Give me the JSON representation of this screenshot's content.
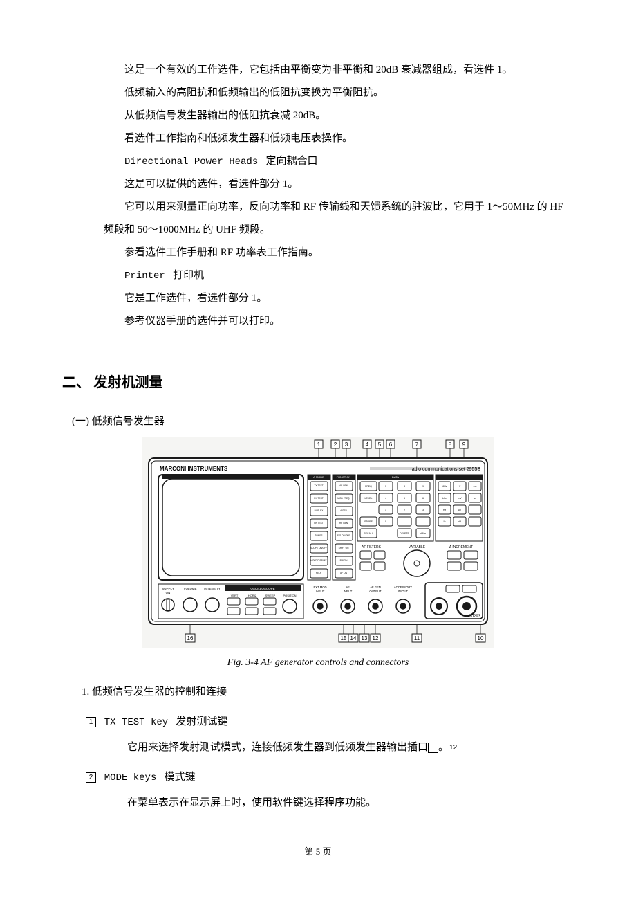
{
  "paragraphs": {
    "p1": "这是一个有效的工作选件，它包括由平衡变为非平衡和 20dB 衰减器组成，看选件 1。",
    "p2": "低频输入的高阻抗和低频输出的低阻抗变换为平衡阻抗。",
    "p3": "从低频信号发生器输出的低阻抗衰减 20dB。",
    "p4": "看选件工作指南和低频发生器和低频电压表操作。",
    "p5_en": "Directional Power Heads",
    "p5_zh": "定向耦合口",
    "p6": "这是可以提供的选件，看选件部分 1。",
    "p7": "它可以用来测量正向功率，反向功率和 RF 传输线和天馈系统的驻波比，它用于 1～50MHz 的 HF 频段和 50～1000MHz 的 UHF 频段。",
    "p8": "参看选件工作手册和 RF 功率表工作指南。",
    "p9_en": "Printer",
    "p9_zh": "打印机",
    "p10": "它是工作选件，看选件部分 1。",
    "p11": "参考仪器手册的选件并可以打印。"
  },
  "section2": {
    "title": "二、 发射机测量",
    "sub1": "(一)  低频信号发生器",
    "fig_caption": "Fig. 3-4    AF generator controls and connectors",
    "list_heading": "1. 低频信号发生器的控制和连接",
    "items": {
      "i1": {
        "num": "1",
        "en": "TX TEST key",
        "zh": "发射测试键",
        "desc": "它用来选择发射测试模式，连接低频发生器到低频发生器输出插口",
        "desc_ref": "12",
        "desc_tail": "。"
      },
      "i2": {
        "num": "2",
        "en": "MODE keys",
        "zh": "模式键",
        "desc": "在菜单表示在显示屏上时，使用软件键选择程序功能。"
      }
    }
  },
  "instrument": {
    "brand": "MARCONI INSTRUMENTS",
    "model_line": "radio  communications   set 2955B",
    "callout_top": [
      "1",
      "2",
      "3",
      "4",
      "5",
      "6",
      "7",
      "8",
      "9"
    ],
    "callout_bottom_left": [
      "16"
    ],
    "callout_bottom_mid": [
      "15",
      "14",
      "13",
      "12"
    ],
    "callout_bottom_right1": [
      "11"
    ],
    "callout_bottom_right2": [
      "10"
    ],
    "code": "C0293",
    "colors": {
      "bg": "#f5f5f3",
      "line": "#1a1a1a",
      "screen": "#ffffff"
    },
    "knob_labels": {
      "supply": "SUPPLY",
      "on": "ON",
      "volume": "VOLUME",
      "intensity": "INTENSITY",
      "osc": "OSCILLOSCOPE",
      "vert": "VERT",
      "horiz": "HORIZ",
      "sweep": "SWEEP",
      "position": "POSITION"
    },
    "right_labels": {
      "af_filters": "AF FILTERS",
      "variable": "VARIABLE",
      "increment": "Δ INCREMENT",
      "ext_mod": "EXT MOD",
      "ext_mod2": "INPUT",
      "af_input": "AF",
      "af_input2": "INPUT",
      "af_gen": "AF GEN",
      "af_gen2": "OUTPUT",
      "accessory": "ACCESSORY",
      "accessory2": "IN/OUT"
    },
    "mode_keys": [
      "TX TEST",
      "RX TEST",
      "DUPLEX",
      "RF TEST",
      "TONES",
      "SCOPE ON/OFF",
      "HOLD DISPLAY",
      "HELP"
    ],
    "func_keys": [
      "AF GEN",
      "MOD FREQ",
      "A GEN",
      "RF GEN",
      "SIG ON/OFF",
      "SHIFT ON",
      "BW ON",
      "AF ON"
    ],
    "data_keys_row1": [
      "FREQ",
      "7",
      "8",
      "9"
    ],
    "data_keys_row2": [
      "LEVEL",
      "4",
      "5",
      "6"
    ],
    "data_keys_row3": [
      "",
      "1",
      "2",
      "3"
    ],
    "data_keys_row4": [
      "STORE",
      "0",
      ".",
      "-"
    ],
    "data_keys_row5": [
      "RECALL",
      "",
      "DELETE",
      "dB/m"
    ],
    "unit_keys_row1": [
      "MHz",
      "V",
      "ms"
    ],
    "unit_keys_row2": [
      "kHz",
      "mV",
      "μs"
    ],
    "unit_keys_row3": [
      "Hz",
      "μV",
      ""
    ],
    "unit_keys_row4": [
      "%",
      "dB",
      ""
    ]
  },
  "page_footer": "第 5 页"
}
